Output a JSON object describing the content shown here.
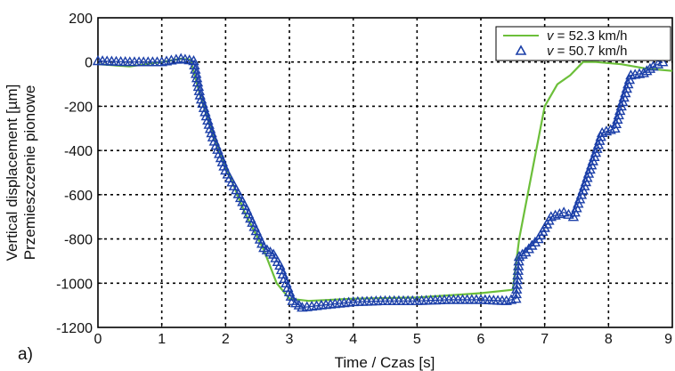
{
  "panel_label": "a)",
  "chart_data": {
    "type": "line",
    "xlabel": "Time / Czas [s]",
    "ylabel_lines": [
      "Vertical displacement [µm]",
      "Przemieszczenie pionowe"
    ],
    "xlim": [
      0,
      9
    ],
    "ylim": [
      -1200,
      200
    ],
    "xticks": [
      0,
      1,
      2,
      3,
      4,
      5,
      6,
      7,
      8,
      9
    ],
    "yticks": [
      -1200,
      -1000,
      -800,
      -600,
      -400,
      -200,
      0,
      200
    ],
    "grid": true,
    "legend_position": "top-right",
    "series": [
      {
        "name": "v = 52.3 km/h",
        "legend_var": "v",
        "legend_rest": " = 52.3 km/h",
        "style": "line",
        "color": "#6cbf3a",
        "x": [
          0,
          0.5,
          1.0,
          1.3,
          1.45,
          1.6,
          1.8,
          2.0,
          2.3,
          2.6,
          2.8,
          3.0,
          3.3,
          4.0,
          5.0,
          6.0,
          6.5,
          6.6,
          6.8,
          7.0,
          7.2,
          7.4,
          7.6,
          7.8,
          8.2,
          8.6,
          9.0
        ],
        "y": [
          -10,
          -20,
          0,
          15,
          10,
          -150,
          -330,
          -470,
          -680,
          -850,
          -1000,
          -1070,
          -1080,
          -1070,
          -1065,
          -1045,
          -1030,
          -800,
          -500,
          -200,
          -100,
          -60,
          0,
          0,
          -10,
          -30,
          -40
        ]
      },
      {
        "name": "v = 50.7 km/h",
        "legend_var": "v",
        "legend_rest": " = 50.7 km/h",
        "style": "triangle",
        "color": "#1b3fa8",
        "x": [
          0,
          0.5,
          1.0,
          1.3,
          1.5,
          1.6,
          1.8,
          2.0,
          2.3,
          2.6,
          2.75,
          2.85,
          2.95,
          3.05,
          3.2,
          3.5,
          4.0,
          4.5,
          5.0,
          5.5,
          6.0,
          6.4,
          6.55,
          6.6,
          6.7,
          6.9,
          7.1,
          7.3,
          7.45,
          7.6,
          7.8,
          7.9,
          8.1,
          8.2,
          8.35,
          8.55,
          8.7,
          8.85
        ],
        "y": [
          5,
          0,
          0,
          15,
          5,
          -150,
          -340,
          -490,
          -650,
          -840,
          -870,
          -920,
          -1000,
          -1080,
          -1110,
          -1100,
          -1085,
          -1080,
          -1080,
          -1075,
          -1075,
          -1080,
          -1070,
          -880,
          -860,
          -800,
          -700,
          -680,
          -700,
          -580,
          -410,
          -320,
          -300,
          -200,
          -60,
          -50,
          -20,
          0
        ]
      }
    ]
  }
}
